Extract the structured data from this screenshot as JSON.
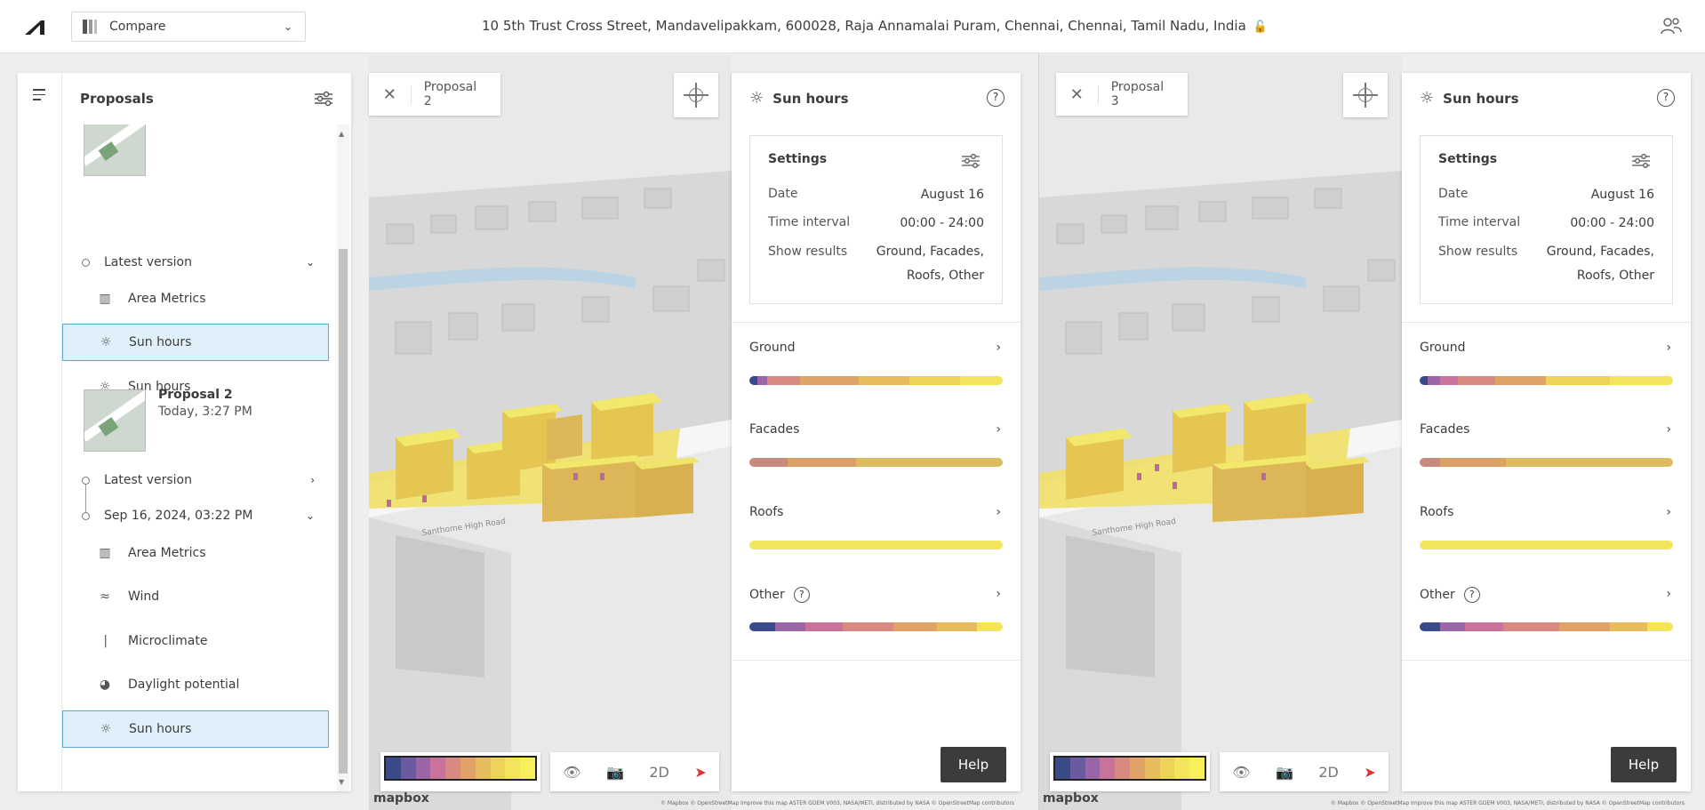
{
  "topbar": {
    "compare_label": "Compare",
    "address": "10 5th Trust Cross Street, Mandavelipakkam, 600028, Raja Annamalai Puram, Chennai, Chennai, Tamil Nadu, India"
  },
  "proposals_panel": {
    "title": "Proposals",
    "group1": {
      "version_label": "Latest version",
      "items": [
        {
          "icon": "area-metrics-icon",
          "label": "Area Metrics",
          "selected": false
        },
        {
          "icon": "sun-icon",
          "label": "Sun hours",
          "selected": true
        },
        {
          "icon": "sun-icon",
          "label": "Sun hours",
          "selected": false
        }
      ]
    },
    "group2": {
      "name": "Proposal 2",
      "date": "Today, 3:27 PM",
      "latest_version": "Latest version",
      "version_date": "Sep 16, 2024, 03:22 PM",
      "items": [
        {
          "icon": "area-metrics-icon",
          "label": "Area Metrics",
          "selected": false
        },
        {
          "icon": "wind-icon",
          "label": "Wind",
          "selected": false
        },
        {
          "icon": "thermometer-icon",
          "label": "Microclimate",
          "selected": false
        },
        {
          "icon": "daylight-icon",
          "label": "Daylight potential",
          "selected": false
        },
        {
          "icon": "sun-icon",
          "label": "Sun hours",
          "selected": true
        }
      ]
    }
  },
  "views": [
    {
      "proposal_label": "Proposal 2",
      "panel": {
        "title": "Sun hours",
        "settings_title": "Settings",
        "date_label": "Date",
        "date_value": "August 16",
        "interval_label": "Time interval",
        "interval_value": "00:00 - 24:00",
        "results_label": "Show results",
        "results_value_1": "Ground, Facades,",
        "results_value_2": "Roofs, Other",
        "cats": [
          "Ground",
          "Facades",
          "Roofs",
          "Other"
        ],
        "help": "Help"
      },
      "ctl_2d": "2D",
      "mapbox": "mapbox",
      "attribution": "© Mapbox  © OpenStreetMap  Improve this map  ASTER GDEM V003, NASA/METI, distributed by NASA  © OpenStreetMap contributors"
    },
    {
      "proposal_label": "Proposal 3",
      "panel": {
        "title": "Sun hours",
        "settings_title": "Settings",
        "date_label": "Date",
        "date_value": "August 16",
        "interval_label": "Time interval",
        "interval_value": "00:00 - 24:00",
        "results_label": "Show results",
        "results_value_1": "Ground, Facades,",
        "results_value_2": "Roofs, Other",
        "cats": [
          "Ground",
          "Facades",
          "Roofs",
          "Other"
        ],
        "help": "Help"
      },
      "ctl_2d": "2D",
      "mapbox": "mapbox",
      "attribution": "© Mapbox  © OpenStreetMap  Improve this map  ASTER GDEM V003, NASA/METI, distributed by NASA  © OpenStreetMap contributors"
    }
  ],
  "map_labels": [
    "Santhome High Road",
    "Santhome High Road"
  ],
  "colors": {
    "accent_selected_bg": "#dff0fb",
    "accent_selected_border": "#5aa9d6",
    "ramp": [
      "#3b4a8a",
      "#6a5aa0",
      "#9a66a8",
      "#c9739a",
      "#d98a80",
      "#e0a266",
      "#e6bc5c",
      "#edd35a",
      "#f4e45c",
      "#f7f05a"
    ]
  }
}
